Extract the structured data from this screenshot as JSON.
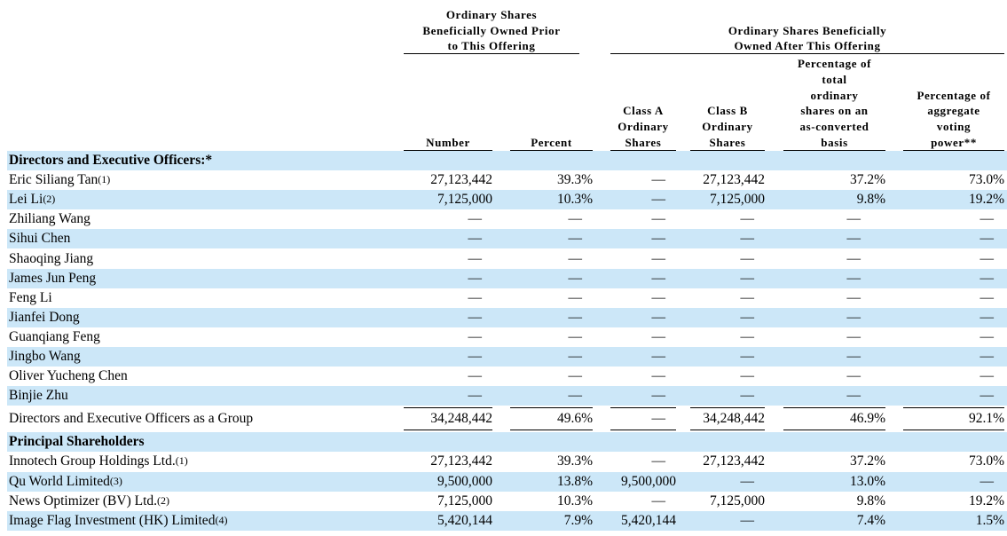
{
  "header": {
    "group_prior": [
      "Ordinary Shares",
      "Beneficially Owned Prior",
      "to This Offering"
    ],
    "group_after": [
      "Ordinary Shares Beneficially",
      "Owned After This Offering"
    ],
    "columns": [
      [
        "Number"
      ],
      [
        "Percent"
      ],
      [
        "Class A",
        "Ordinary",
        "Shares"
      ],
      [
        "Class B",
        "Ordinary",
        "Shares"
      ],
      [
        "Percentage of",
        "total",
        "ordinary",
        "shares on an",
        "as-converted",
        "basis"
      ],
      [
        "Percentage of",
        "aggregate",
        "voting",
        "power**"
      ]
    ]
  },
  "sections": [
    {
      "title": "Directors and Executive Officers:*",
      "rows": [
        {
          "name": "Eric Siliang Tan",
          "note": "(1)",
          "cells": [
            "27,123,442",
            "39.3%",
            "—",
            "27,123,442",
            "37.2%",
            "73.0%"
          ]
        },
        {
          "name": "Lei Li",
          "note": "(2)",
          "cells": [
            "7,125,000",
            "10.3%",
            "—",
            "7,125,000",
            "9.8%",
            "19.2%"
          ]
        },
        {
          "name": "Zhiliang Wang",
          "cells": [
            "—",
            "—",
            "—",
            "—",
            "—",
            "—"
          ]
        },
        {
          "name": "Sihui Chen",
          "cells": [
            "—",
            "—",
            "—",
            "—",
            "—",
            "—"
          ]
        },
        {
          "name": "Shaoqing Jiang",
          "cells": [
            "—",
            "—",
            "—",
            "—",
            "—",
            "—"
          ]
        },
        {
          "name": "James Jun Peng",
          "cells": [
            "—",
            "—",
            "—",
            "—",
            "—",
            "—"
          ]
        },
        {
          "name": "Feng Li",
          "cells": [
            "—",
            "—",
            "—",
            "—",
            "—",
            "—"
          ]
        },
        {
          "name": "Jianfei Dong",
          "cells": [
            "—",
            "—",
            "—",
            "—",
            "—",
            "—"
          ]
        },
        {
          "name": "Guanqiang Feng",
          "cells": [
            "—",
            "—",
            "—",
            "—",
            "—",
            "—"
          ]
        },
        {
          "name": "Jingbo Wang",
          "cells": [
            "—",
            "—",
            "—",
            "—",
            "—",
            "—"
          ]
        },
        {
          "name": "Oliver Yucheng Chen",
          "cells": [
            "—",
            "—",
            "—",
            "—",
            "—",
            "—"
          ]
        },
        {
          "name": "Binjie Zhu",
          "cells": [
            "—",
            "—",
            "—",
            "—",
            "—",
            "—"
          ]
        }
      ],
      "total_row": {
        "name": "Directors and Executive Officers as a Group",
        "cells": [
          "34,248,442",
          "49.6%",
          "—",
          "34,248,442",
          "46.9%",
          "92.1%"
        ]
      }
    },
    {
      "title": "Principal Shareholders",
      "rows": [
        {
          "name": "Innotech Group Holdings Ltd.",
          "note": "(1)",
          "cells": [
            "27,123,442",
            "39.3%",
            "—",
            "27,123,442",
            "37.2%",
            "73.0%"
          ]
        },
        {
          "name": "Qu World Limited",
          "note": "(3)",
          "cells": [
            "9,500,000",
            "13.8%",
            "9,500,000",
            "—",
            "13.0%",
            "—"
          ]
        },
        {
          "name": "News Optimizer (BV) Ltd.",
          "note": "(2)",
          "cells": [
            "7,125,000",
            "10.3%",
            "—",
            "7,125,000",
            "9.8%",
            "19.2%"
          ]
        },
        {
          "name": "Image Flag Investment (HK) Limited",
          "note": "(4)",
          "cells": [
            "5,420,144",
            "7.9%",
            "5,420,144",
            "—",
            "7.4%",
            "1.5%"
          ]
        }
      ]
    }
  ]
}
